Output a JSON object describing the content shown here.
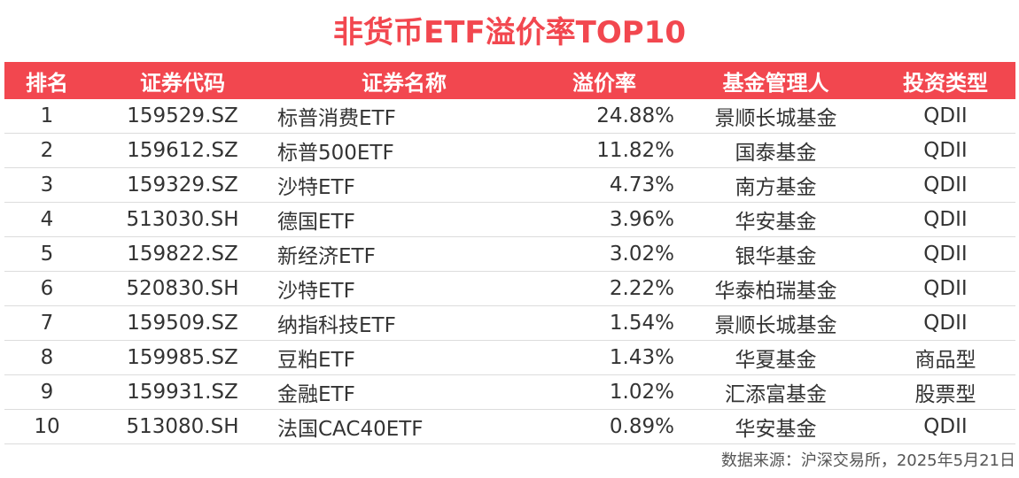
{
  "title": "非货币ETF溢价率TOP10",
  "colors": {
    "accent": "#f2474f",
    "header_text": "#ffffff",
    "row_divider": "#dcdcdc"
  },
  "chart_data": {
    "type": "table",
    "title": "非货币ETF溢价率TOP10",
    "columns": [
      "排名",
      "证券代码",
      "证券名称",
      "溢价率",
      "基金管理人",
      "投资类型"
    ],
    "rows": [
      [
        "1",
        "159529.SZ",
        "标普消费ETF",
        "24.88%",
        "景顺长城基金",
        "QDII"
      ],
      [
        "2",
        "159612.SZ",
        "标普500ETF",
        "11.82%",
        "国泰基金",
        "QDII"
      ],
      [
        "3",
        "159329.SZ",
        "沙特ETF",
        "4.73%",
        "南方基金",
        "QDII"
      ],
      [
        "4",
        "513030.SH",
        "德国ETF",
        "3.96%",
        "华安基金",
        "QDII"
      ],
      [
        "5",
        "159822.SZ",
        "新经济ETF",
        "3.02%",
        "银华基金",
        "QDII"
      ],
      [
        "6",
        "520830.SH",
        "沙特ETF",
        "2.22%",
        "华泰柏瑞基金",
        "QDII"
      ],
      [
        "7",
        "159509.SZ",
        "纳指科技ETF",
        "1.54%",
        "景顺长城基金",
        "QDII"
      ],
      [
        "8",
        "159985.SZ",
        "豆粕ETF",
        "1.43%",
        "华夏基金",
        "商品型"
      ],
      [
        "9",
        "159931.SZ",
        "金融ETF",
        "1.02%",
        "汇添富基金",
        "股票型"
      ],
      [
        "10",
        "513080.SH",
        "法国CAC40ETF",
        "0.89%",
        "华安基金",
        "QDII"
      ]
    ]
  },
  "footer": {
    "source": "数据来源：沪深交易所，2025年5月21日"
  }
}
